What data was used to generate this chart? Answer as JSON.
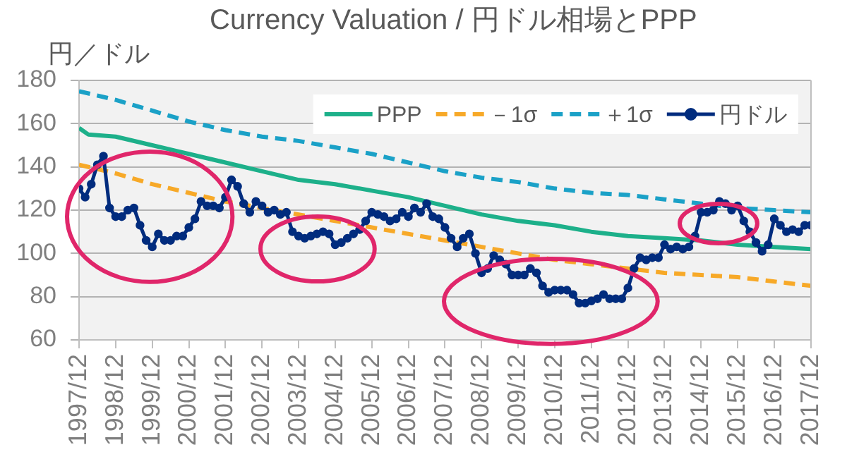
{
  "chart_data": {
    "type": "line",
    "title": "Currency Valuation / 円ドル相場とPPP",
    "ylabel": "円／ドル",
    "xlim": [
      "1997-12",
      "2017-12"
    ],
    "xticks": [
      {
        "value": "1997-12",
        "label": "1997/12"
      },
      {
        "value": "1998-12",
        "label": "1998/12"
      },
      {
        "value": "1999-12",
        "label": "1999/12"
      },
      {
        "value": "2000-12",
        "label": "2000/12"
      },
      {
        "value": "2001-12",
        "label": "2001/12"
      },
      {
        "value": "2002-12",
        "label": "2002/12"
      },
      {
        "value": "2003-12",
        "label": "2003/12"
      },
      {
        "value": "2004-12",
        "label": "2004/12"
      },
      {
        "value": "2005-12",
        "label": "2005/12"
      },
      {
        "value": "2006-12",
        "label": "2006/12"
      },
      {
        "value": "2007-12",
        "label": "2007/12"
      },
      {
        "value": "2008-12",
        "label": "2008/12"
      },
      {
        "value": "2009-12",
        "label": "2009/12"
      },
      {
        "value": "2010-12",
        "label": "2010/12"
      },
      {
        "value": "2011-12",
        "label": "2011/12"
      },
      {
        "value": "2012-12",
        "label": "2012/12"
      },
      {
        "value": "2013-12",
        "label": "2013/12"
      },
      {
        "value": "2014-12",
        "label": "2014/12"
      },
      {
        "value": "2015-12",
        "label": "2015/12"
      },
      {
        "value": "2016-12",
        "label": "2016/12"
      },
      {
        "value": "2017-12",
        "label": "2017/12"
      }
    ],
    "ylim": [
      60,
      180
    ],
    "yticks": [
      60,
      80,
      100,
      120,
      140,
      160,
      180
    ],
    "grid": "y",
    "legend": "top right",
    "series": [
      {
        "name": "PPP",
        "color": "#1db08a",
        "line_style": "solid",
        "marker": "none",
        "x": [
          "1997-12",
          "1998-03",
          "1998-12",
          "1999-12",
          "2000-12",
          "2001-12",
          "2002-12",
          "2003-12",
          "2004-12",
          "2005-12",
          "2006-12",
          "2007-12",
          "2008-12",
          "2009-12",
          "2010-12",
          "2011-12",
          "2012-12",
          "2013-12",
          "2014-12",
          "2015-12",
          "2016-12",
          "2017-12"
        ],
        "values": [
          158,
          155,
          154,
          150,
          146,
          142,
          138,
          134,
          132,
          129,
          126,
          122,
          118,
          115,
          113,
          110,
          108,
          107,
          106,
          104,
          103,
          102
        ]
      },
      {
        "name": "－1σ",
        "color": "#f7a928",
        "line_style": "dashed",
        "marker": "none",
        "x": [
          "1997-12",
          "1998-12",
          "1999-12",
          "2000-12",
          "2001-12",
          "2002-12",
          "2003-12",
          "2004-12",
          "2005-12",
          "2006-12",
          "2007-12",
          "2008-12",
          "2009-12",
          "2010-12",
          "2011-12",
          "2012-12",
          "2013-12",
          "2014-12",
          "2015-12",
          "2016-12",
          "2017-12"
        ],
        "values": [
          141,
          137,
          132,
          128,
          124,
          121,
          118,
          115,
          112,
          109,
          106,
          103,
          100,
          97,
          95,
          93,
          91,
          90,
          89,
          87,
          85
        ]
      },
      {
        "name": "＋1σ",
        "color": "#1ba1c7",
        "line_style": "dashed",
        "marker": "none",
        "x": [
          "1997-12",
          "1998-12",
          "1999-12",
          "2000-12",
          "2001-12",
          "2002-12",
          "2003-12",
          "2004-12",
          "2005-12",
          "2006-12",
          "2007-12",
          "2008-12",
          "2009-12",
          "2010-12",
          "2011-12",
          "2012-12",
          "2013-12",
          "2014-12",
          "2015-12",
          "2016-12",
          "2017-12"
        ],
        "values": [
          175,
          171,
          166,
          161,
          157,
          154,
          152,
          149,
          146,
          142,
          138,
          135,
          133,
          130,
          128,
          127,
          125,
          123,
          121,
          120,
          119
        ]
      },
      {
        "name": "円ドル",
        "color": "#012c7e",
        "line_style": "solid",
        "marker": "circle",
        "x": [
          "1997-12",
          "1998-02",
          "1998-04",
          "1998-06",
          "1998-08",
          "1998-10",
          "1998-12",
          "1999-02",
          "1999-04",
          "1999-06",
          "1999-08",
          "1999-10",
          "1999-12",
          "2000-02",
          "2000-04",
          "2000-06",
          "2000-08",
          "2000-10",
          "2000-12",
          "2001-02",
          "2001-04",
          "2001-06",
          "2001-08",
          "2001-10",
          "2001-12",
          "2002-02",
          "2002-04",
          "2002-06",
          "2002-08",
          "2002-10",
          "2002-12",
          "2003-02",
          "2003-04",
          "2003-06",
          "2003-08",
          "2003-10",
          "2003-12",
          "2004-02",
          "2004-04",
          "2004-06",
          "2004-08",
          "2004-10",
          "2004-12",
          "2005-02",
          "2005-04",
          "2005-06",
          "2005-08",
          "2005-10",
          "2005-12",
          "2006-02",
          "2006-04",
          "2006-06",
          "2006-08",
          "2006-10",
          "2006-12",
          "2007-02",
          "2007-04",
          "2007-06",
          "2007-08",
          "2007-10",
          "2007-12",
          "2008-02",
          "2008-04",
          "2008-06",
          "2008-08",
          "2008-10",
          "2008-12",
          "2009-02",
          "2009-04",
          "2009-06",
          "2009-08",
          "2009-10",
          "2009-12",
          "2010-02",
          "2010-04",
          "2010-06",
          "2010-08",
          "2010-10",
          "2010-12",
          "2011-02",
          "2011-04",
          "2011-06",
          "2011-08",
          "2011-10",
          "2011-12",
          "2012-02",
          "2012-04",
          "2012-06",
          "2012-08",
          "2012-10",
          "2012-12",
          "2013-02",
          "2013-04",
          "2013-06",
          "2013-08",
          "2013-10",
          "2013-12",
          "2014-02",
          "2014-04",
          "2014-06",
          "2014-08",
          "2014-10",
          "2014-12",
          "2015-02",
          "2015-04",
          "2015-06",
          "2015-08",
          "2015-10",
          "2015-12",
          "2016-02",
          "2016-04",
          "2016-06",
          "2016-08",
          "2016-10",
          "2016-12",
          "2017-02",
          "2017-04",
          "2017-06",
          "2017-08",
          "2017-10",
          "2017-12"
        ],
        "values": [
          130,
          126,
          132,
          141,
          145,
          121,
          117,
          117,
          120,
          121,
          113,
          106,
          103,
          109,
          106,
          106,
          108,
          108,
          112,
          116,
          124,
          122,
          122,
          121,
          126,
          134,
          131,
          123,
          119,
          124,
          122,
          119,
          120,
          118,
          119,
          110,
          108,
          107,
          108,
          109,
          110,
          109,
          104,
          105,
          107,
          109,
          111,
          115,
          119,
          118,
          117,
          115,
          116,
          119,
          117,
          121,
          119,
          123,
          117,
          116,
          112,
          107,
          103,
          107,
          109,
          100,
          91,
          93,
          99,
          97,
          95,
          90,
          90,
          90,
          93,
          91,
          85,
          82,
          83,
          83,
          83,
          81,
          77,
          77,
          78,
          79,
          81,
          79,
          79,
          79,
          84,
          93,
          98,
          97,
          98,
          98,
          104,
          102,
          103,
          102,
          103,
          108,
          119,
          119,
          120,
          124,
          123,
          120,
          122,
          115,
          110,
          105,
          101,
          104,
          116,
          113,
          110,
          111,
          110,
          113,
          113
        ]
      }
    ]
  }
}
